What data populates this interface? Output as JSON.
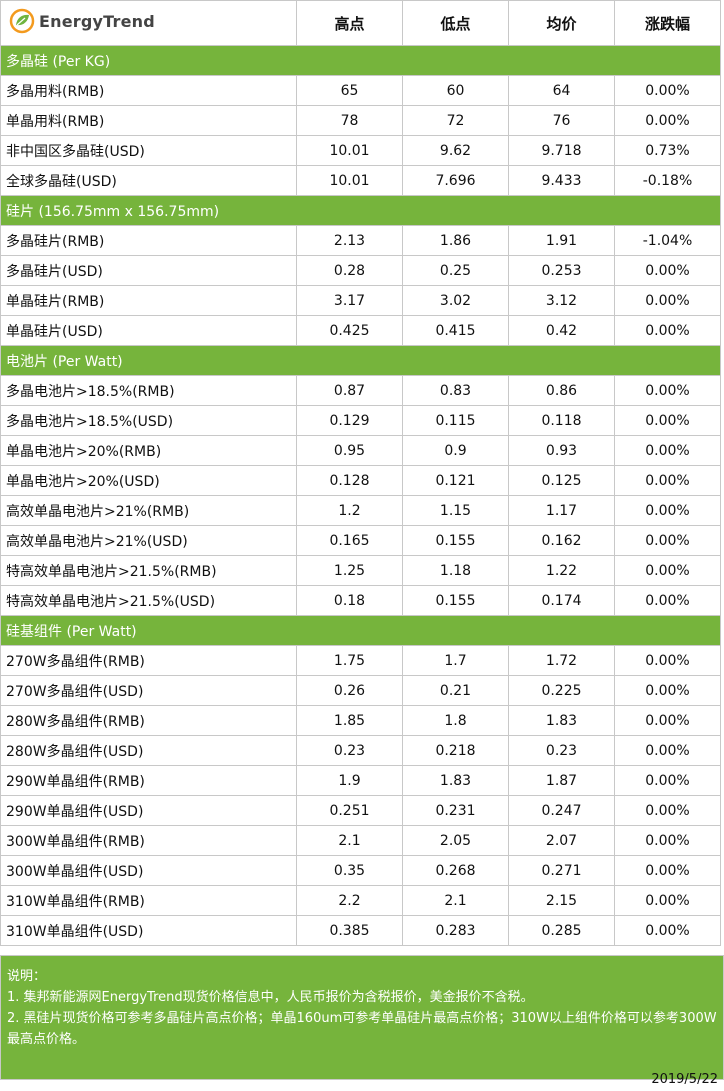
{
  "header": {
    "brand": "EnergyTrend",
    "col_high": "高点",
    "col_low": "低点",
    "col_avg": "均价",
    "col_change": "涨跌幅"
  },
  "sections": [
    {
      "title": "多晶硅 (Per KG)",
      "rows": [
        {
          "name": "多晶用料(RMB)",
          "high": "65",
          "low": "60",
          "avg": "64",
          "change": "0.00%"
        },
        {
          "name": "单晶用料(RMB)",
          "high": "78",
          "low": "72",
          "avg": "76",
          "change": "0.00%"
        },
        {
          "name": "非中国区多晶硅(USD)",
          "high": "10.01",
          "low": "9.62",
          "avg": "9.718",
          "change": "0.73%"
        },
        {
          "name": "全球多晶硅(USD)",
          "high": "10.01",
          "low": "7.696",
          "avg": "9.433",
          "change": "-0.18%"
        }
      ]
    },
    {
      "title": "硅片 (156.75mm x 156.75mm)",
      "rows": [
        {
          "name": "多晶硅片(RMB)",
          "high": "2.13",
          "low": "1.86",
          "avg": "1.91",
          "change": "-1.04%"
        },
        {
          "name": "多晶硅片(USD)",
          "high": "0.28",
          "low": "0.25",
          "avg": "0.253",
          "change": "0.00%"
        },
        {
          "name": "单晶硅片(RMB)",
          "high": "3.17",
          "low": "3.02",
          "avg": "3.12",
          "change": "0.00%"
        },
        {
          "name": "单晶硅片(USD)",
          "high": "0.425",
          "low": "0.415",
          "avg": "0.42",
          "change": "0.00%"
        }
      ]
    },
    {
      "title": "电池片 (Per Watt)",
      "rows": [
        {
          "name": "多晶电池片>18.5%(RMB)",
          "high": "0.87",
          "low": "0.83",
          "avg": "0.86",
          "change": "0.00%"
        },
        {
          "name": "多晶电池片>18.5%(USD)",
          "high": "0.129",
          "low": "0.115",
          "avg": "0.118",
          "change": "0.00%"
        },
        {
          "name": "单晶电池片>20%(RMB)",
          "high": "0.95",
          "low": "0.9",
          "avg": "0.93",
          "change": "0.00%"
        },
        {
          "name": "单晶电池片>20%(USD)",
          "high": "0.128",
          "low": "0.121",
          "avg": "0.125",
          "change": "0.00%"
        },
        {
          "name": "高效单晶电池片>21%(RMB)",
          "high": "1.2",
          "low": "1.15",
          "avg": "1.17",
          "change": "0.00%"
        },
        {
          "name": "高效单晶电池片>21%(USD)",
          "high": "0.165",
          "low": "0.155",
          "avg": "0.162",
          "change": "0.00%"
        },
        {
          "name": "特高效单晶电池片>21.5%(RMB)",
          "high": "1.25",
          "low": "1.18",
          "avg": "1.22",
          "change": "0.00%"
        },
        {
          "name": "特高效单晶电池片>21.5%(USD)",
          "high": "0.18",
          "low": "0.155",
          "avg": "0.174",
          "change": "0.00%"
        }
      ]
    },
    {
      "title": "硅基组件 (Per Watt)",
      "rows": [
        {
          "name": "270W多晶组件(RMB)",
          "high": "1.75",
          "low": "1.7",
          "avg": "1.72",
          "change": "0.00%"
        },
        {
          "name": "270W多晶组件(USD)",
          "high": "0.26",
          "low": "0.21",
          "avg": "0.225",
          "change": "0.00%"
        },
        {
          "name": "280W多晶组件(RMB)",
          "high": "1.85",
          "low": "1.8",
          "avg": "1.83",
          "change": "0.00%"
        },
        {
          "name": "280W多晶组件(USD)",
          "high": "0.23",
          "low": "0.218",
          "avg": "0.23",
          "change": "0.00%"
        },
        {
          "name": "290W单晶组件(RMB)",
          "high": "1.9",
          "low": "1.83",
          "avg": "1.87",
          "change": "0.00%"
        },
        {
          "name": "290W单晶组件(USD)",
          "high": "0.251",
          "low": "0.231",
          "avg": "0.247",
          "change": "0.00%"
        },
        {
          "name": "300W单晶组件(RMB)",
          "high": "2.1",
          "low": "2.05",
          "avg": "2.07",
          "change": "0.00%"
        },
        {
          "name": "300W单晶组件(USD)",
          "high": "0.35",
          "low": "0.268",
          "avg": "0.271",
          "change": "0.00%"
        },
        {
          "name": "310W单晶组件(RMB)",
          "high": "2.2",
          "low": "2.1",
          "avg": "2.15",
          "change": "0.00%"
        },
        {
          "name": "310W单晶组件(USD)",
          "high": "0.385",
          "low": "0.283",
          "avg": "0.285",
          "change": "0.00%"
        }
      ]
    }
  ],
  "notes": {
    "title": "说明：",
    "line1": "1. 集邦新能源网EnergyTrend现货价格信息中，人民币报价为含税报价，美金报价不含税。",
    "line2": "2. 黑硅片现货价格可参考多晶硅片高点价格；单晶160um可参考单晶硅片最高点价格；310W以上组件价格可以参考300W最高点价格。"
  },
  "date": "2019/5/22",
  "colors": {
    "section_green": "#76b43c",
    "logo_green": "#6fb43f",
    "logo_orange": "#f39a1e",
    "border": "#c8c8c8"
  }
}
